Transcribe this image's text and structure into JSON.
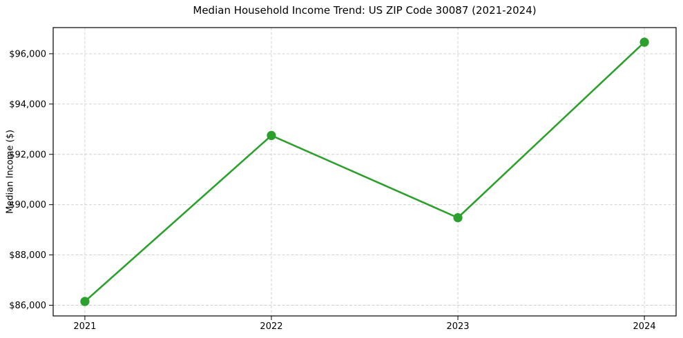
{
  "chart": {
    "title": "Median Household Income Trend: US ZIP Code 30087 (2021-2024)",
    "ylabel": "Median Income ($)"
  },
  "chart_data": {
    "type": "line",
    "title": "Median Household Income Trend: US ZIP Code 30087 (2021-2024)",
    "xlabel": "",
    "ylabel": "Median Income ($)",
    "x": [
      2021,
      2022,
      2023,
      2024
    ],
    "x_tick_labels": [
      "2021",
      "2022",
      "2023",
      "2024"
    ],
    "values": [
      86150,
      92750,
      89480,
      96460
    ],
    "yticks": [
      86000,
      88000,
      90000,
      92000,
      94000,
      96000
    ],
    "ytick_labels": [
      "$86,000",
      "$88,000",
      "$90,000",
      "$92,000",
      "$94,000",
      "$96,000"
    ],
    "xlim": [
      2020.83,
      2024.17
    ],
    "ylim": [
      85575,
      97040
    ],
    "grid": true,
    "grid_style": "dashed",
    "legend": "none",
    "series_name": "Median Household Income",
    "line_color": "#2ca02c",
    "marker": "circle",
    "grid_color": "#c6c6c6",
    "spine_color": "#000000",
    "background_color": "#ffffff",
    "text_color": "#000000"
  }
}
